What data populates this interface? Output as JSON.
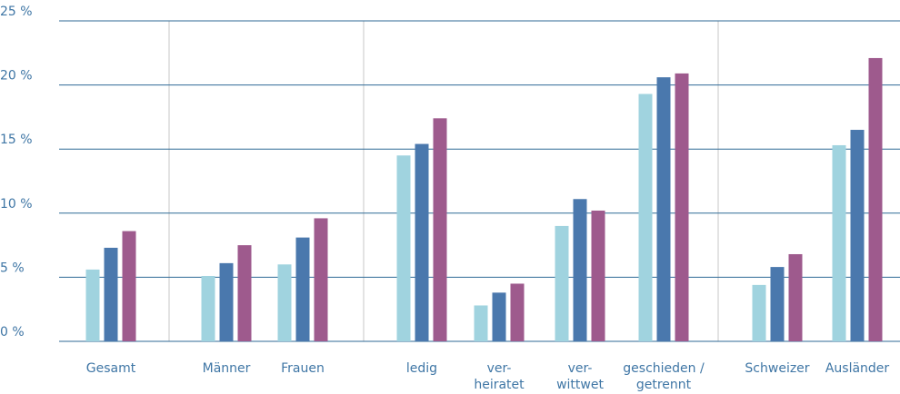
{
  "chart_data": {
    "type": "bar",
    "categories": [
      [
        "Gesamt"
      ],
      [
        "Männer"
      ],
      [
        "Frauen"
      ],
      [
        "ledig"
      ],
      [
        "ver-",
        "heiratet"
      ],
      [
        "ver-",
        "wittwet"
      ],
      [
        "geschieden /",
        "getrennt"
      ],
      [
        "Schweizer"
      ],
      [
        "Ausländer"
      ]
    ],
    "series": [
      {
        "color": "#a0d3df",
        "values": [
          5.6,
          5.1,
          6.0,
          14.5,
          2.8,
          9.0,
          19.3,
          4.4,
          15.3
        ]
      },
      {
        "color": "#4a78ad",
        "values": [
          7.3,
          6.1,
          8.1,
          15.4,
          3.8,
          11.1,
          20.6,
          5.8,
          16.5
        ]
      },
      {
        "color": "#9e5a8d",
        "values": [
          8.6,
          7.5,
          9.6,
          17.4,
          4.5,
          10.2,
          20.9,
          6.8,
          22.1
        ]
      }
    ],
    "ylim": [
      0,
      25
    ],
    "yticks": [
      {
        "value": 0,
        "label": "0 %"
      },
      {
        "value": 5,
        "label": "5 %"
      },
      {
        "value": 10,
        "label": "10 %"
      },
      {
        "value": 15,
        "label": "15 %"
      },
      {
        "value": 20,
        "label": "20 %"
      },
      {
        "value": 25,
        "label": "25 %"
      }
    ],
    "grid": true
  }
}
